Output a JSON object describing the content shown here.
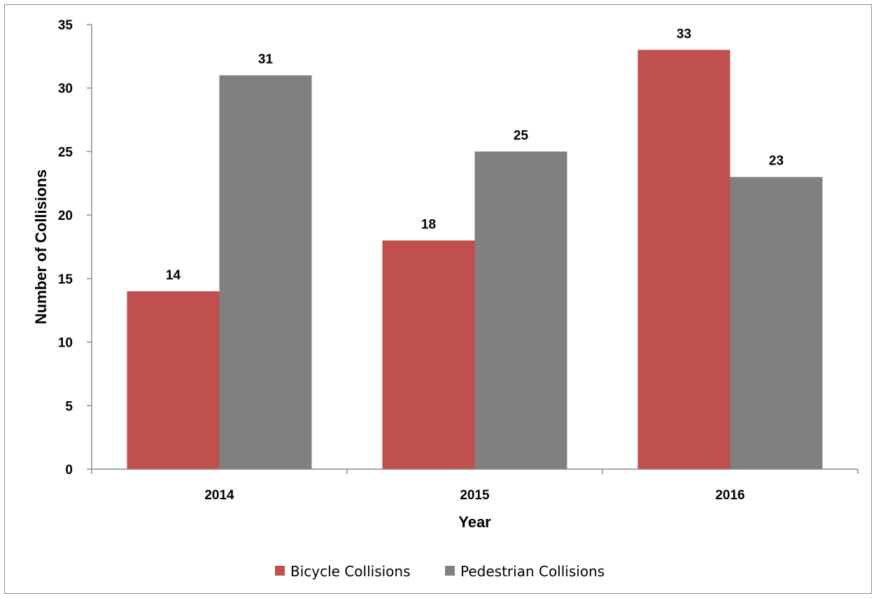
{
  "chart_data": {
    "type": "bar",
    "title": "",
    "xlabel": "Year",
    "ylabel": "Number of Collisions",
    "categories": [
      "2014",
      "2015",
      "2016"
    ],
    "series": [
      {
        "name": "Bicycle Collisions",
        "values": [
          14,
          18,
          33
        ],
        "color": "#c0504d"
      },
      {
        "name": "Pedestrian Collisions",
        "values": [
          31,
          25,
          23
        ],
        "color": "#808080"
      }
    ],
    "ylim": [
      0,
      35
    ],
    "yticks": [
      0,
      5,
      10,
      15,
      20,
      25,
      30,
      35
    ],
    "grid": false,
    "legend_position": "bottom",
    "data_labels": true
  }
}
